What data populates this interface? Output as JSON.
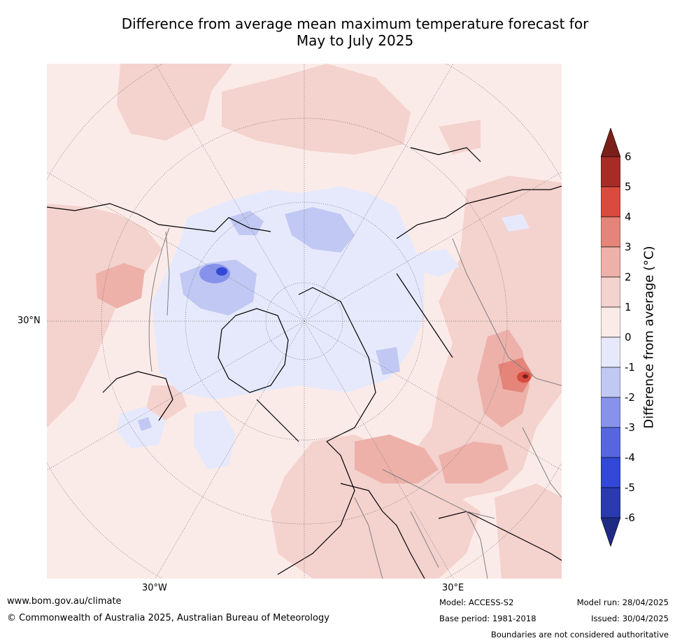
{
  "title": {
    "line1": "Difference from average mean maximum temperature forecast for",
    "line2": "May to July 2025"
  },
  "map_labels": {
    "lat_30n": "30°N",
    "lon_30w": "30°W",
    "lon_30e": "30°E"
  },
  "colorbar": {
    "label": "Difference from average (°C)",
    "ticks": [
      "6",
      "5",
      "4",
      "3",
      "2",
      "1",
      "0",
      "-1",
      "-2",
      "-3",
      "-4",
      "-5",
      "-6"
    ],
    "colors": {
      "above_6": "#7a1f1a",
      "5_6": "#a82c26",
      "4_5": "#d94b3e",
      "3_4": "#e58479",
      "2_3": "#edb1aa",
      "1_2": "#f4d2ce",
      "0_1": "#fbebe8",
      "m1_0": "#e6e9fb",
      "m2_m1": "#c1c8f3",
      "m3_m2": "#8793ea",
      "m4_m3": "#5566e0",
      "m5_m4": "#3248d6",
      "m6_m5": "#2a3bb0",
      "below_m6": "#1f2a85"
    }
  },
  "footer": {
    "website": "www.bom.gov.au/climate",
    "copyright": "© Commonwealth of Australia 2025, Australian Bureau of Meteorology",
    "model": "Model: ACCESS-S2",
    "base_period": "Base period: 1981-2018",
    "model_run": "Model run: 28/04/2025",
    "issued": "Issued: 30/04/2025",
    "disclaimer": "Boundaries are not considered authoritative"
  }
}
